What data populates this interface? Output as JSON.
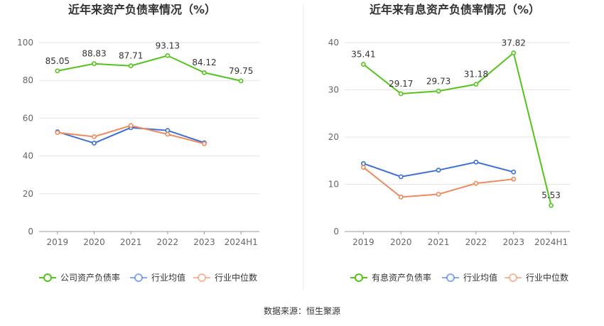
{
  "chart_data": [
    {
      "type": "line",
      "title": "近年来资产负债率情况（%）",
      "categories": [
        "2019",
        "2020",
        "2021",
        "2022",
        "2023",
        "2024H1"
      ],
      "ylim": [
        0,
        100
      ],
      "yticks": [
        0,
        20,
        40,
        60,
        80,
        100
      ],
      "grid": true,
      "legend_position": "bottom",
      "series": [
        {
          "name": "公司资产负债率",
          "color": "#52c41a",
          "labeled": true,
          "values": [
            85.05,
            88.83,
            87.71,
            93.13,
            84.12,
            79.75
          ]
        },
        {
          "name": "行业均值",
          "color": "#3a6fd8",
          "labeled": false,
          "values": [
            52.8,
            46.8,
            55.0,
            53.5,
            47.0,
            null
          ]
        },
        {
          "name": "行业中位数",
          "color": "#f08a5d",
          "labeled": false,
          "values": [
            52.4,
            50.2,
            56.1,
            51.5,
            46.5,
            null
          ]
        }
      ]
    },
    {
      "type": "line",
      "title": "近年来有息资产负债率情况（%）",
      "categories": [
        "2019",
        "2020",
        "2021",
        "2022",
        "2023",
        "2024H1"
      ],
      "ylim": [
        0,
        40
      ],
      "yticks": [
        0,
        10,
        20,
        30,
        40
      ],
      "grid": true,
      "legend_position": "bottom",
      "series": [
        {
          "name": "有息资产负债率",
          "color": "#52c41a",
          "labeled": true,
          "values": [
            35.41,
            29.17,
            29.73,
            31.18,
            37.82,
            5.53
          ]
        },
        {
          "name": "行业均值",
          "color": "#3a6fd8",
          "labeled": false,
          "values": [
            14.4,
            11.6,
            13.0,
            14.7,
            12.6,
            null
          ]
        },
        {
          "name": "行业中位数",
          "color": "#f08a5d",
          "labeled": false,
          "values": [
            13.6,
            7.3,
            7.9,
            10.2,
            11.1,
            null
          ]
        }
      ]
    }
  ],
  "source_text": "数据来源：恒生聚源"
}
